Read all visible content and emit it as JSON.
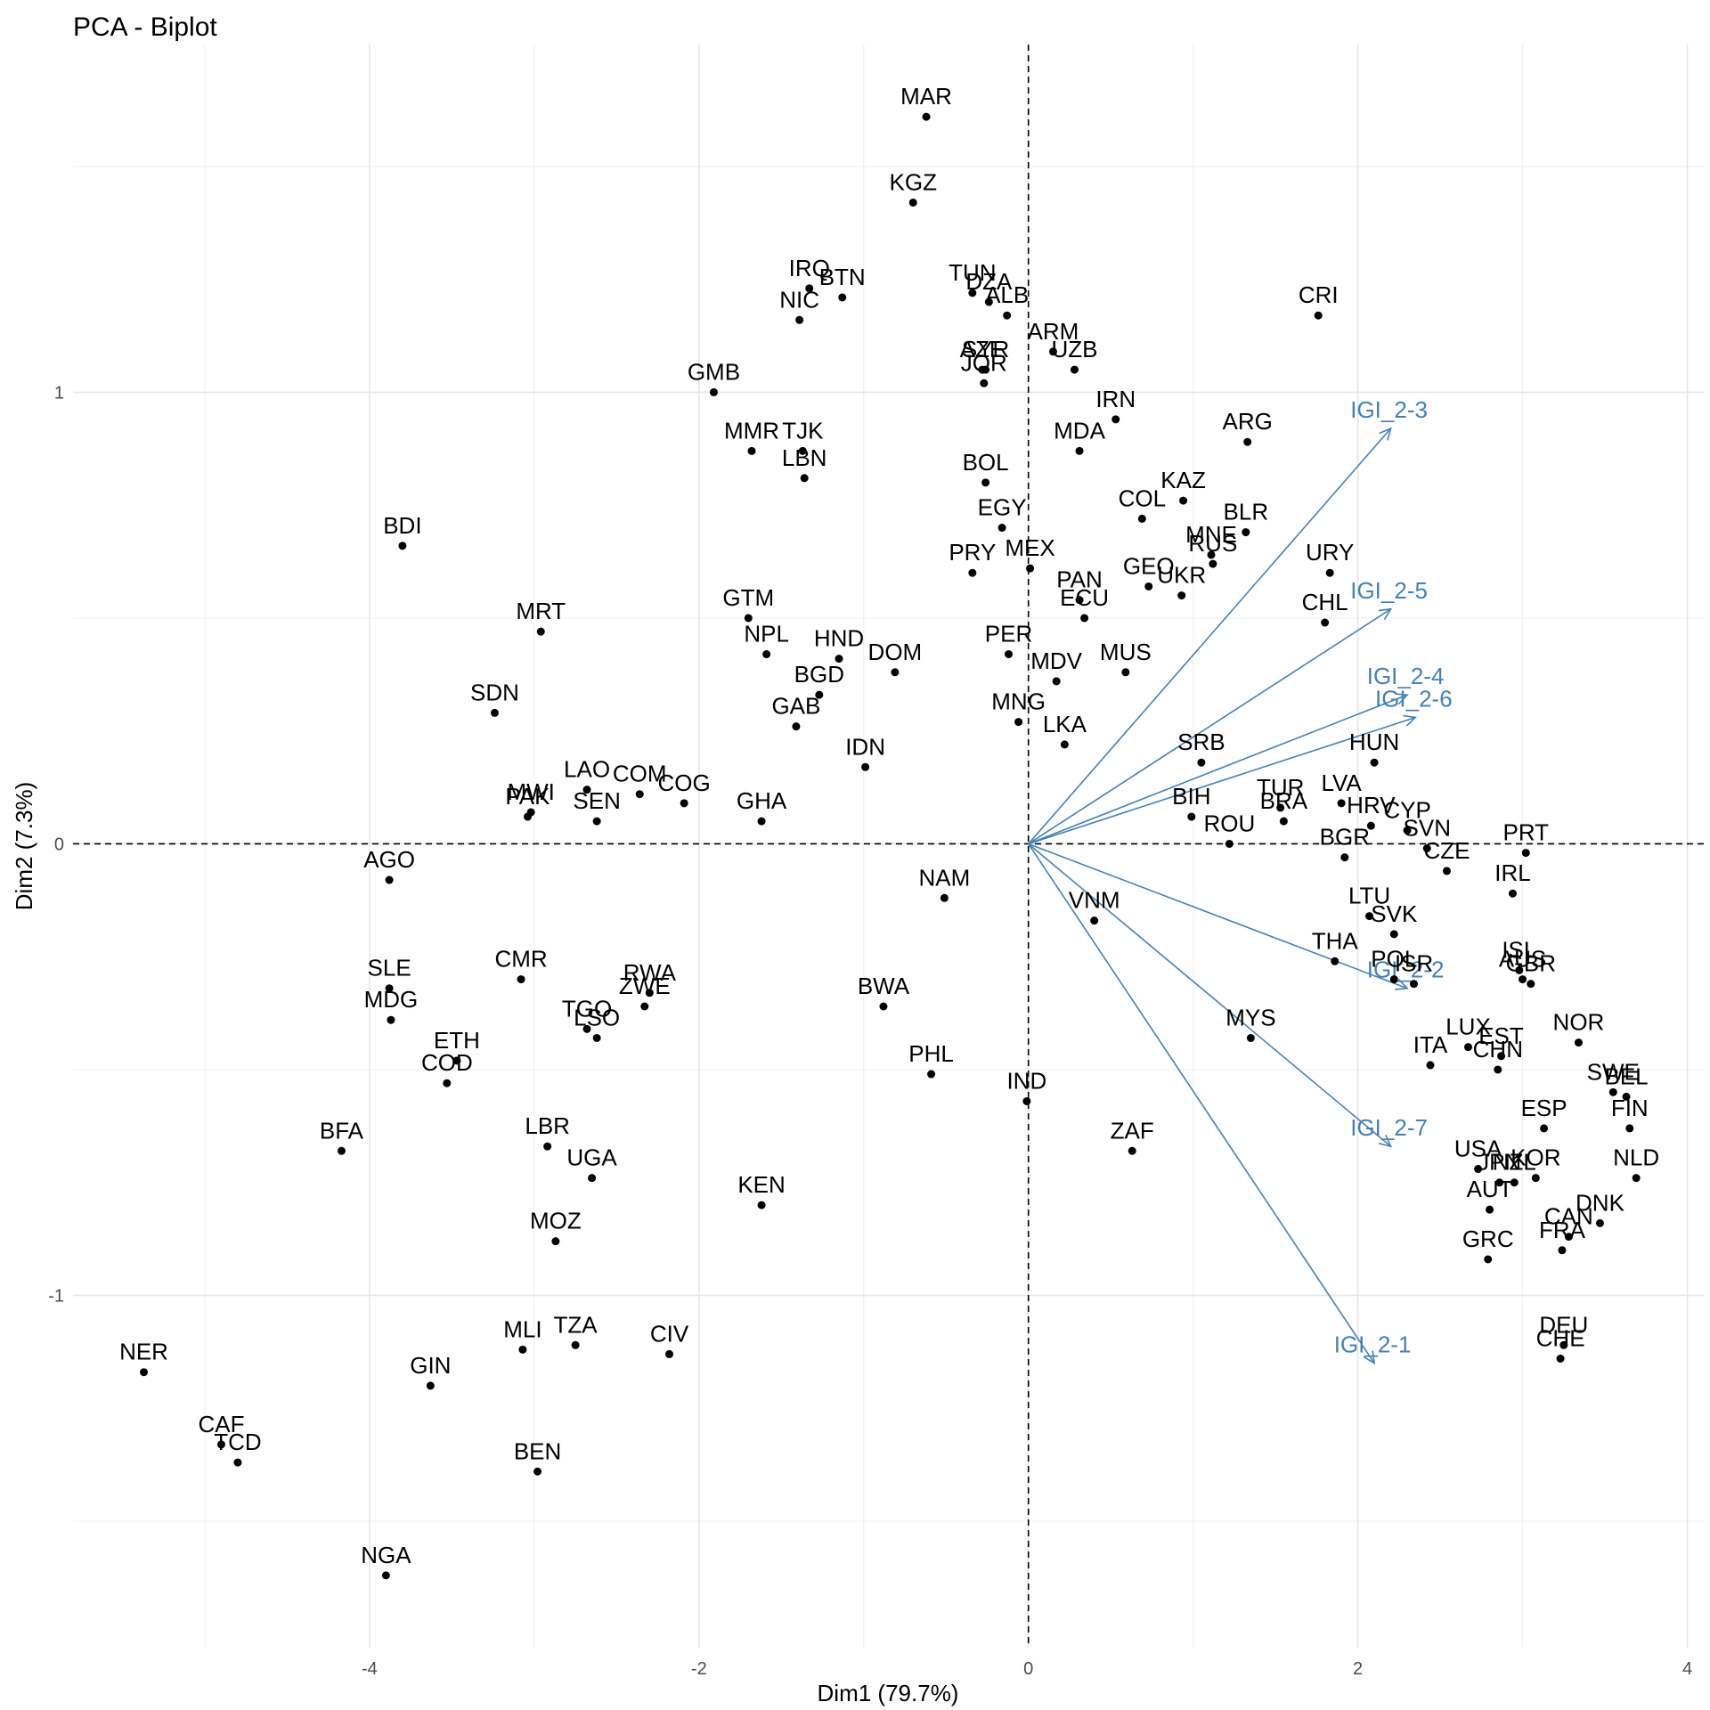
{
  "chart_data": {
    "type": "scatter",
    "title": "PCA - Biplot",
    "xlabel": "Dim1 (79.7%)",
    "ylabel": "Dim2 (7.3%)",
    "xlim": [
      -5.8,
      4.1
    ],
    "ylim": [
      -1.78,
      1.77
    ],
    "xticks": [
      -4,
      -2,
      0,
      2,
      4
    ],
    "xtick_labels": [
      "-4",
      "-2",
      "0",
      "2",
      "4"
    ],
    "yticks": [
      -1,
      0,
      1
    ],
    "ytick_labels": [
      "-1",
      "0",
      "1"
    ],
    "grid": true,
    "reference_lines": "dashed lines at x=0 and y=0",
    "variable_color": "#4682b4",
    "point_color": "#000000",
    "individuals": [
      {
        "label": "MAR",
        "x": -0.62,
        "y": 1.61
      },
      {
        "label": "KGZ",
        "x": -0.7,
        "y": 1.42
      },
      {
        "label": "IRQ",
        "x": -1.33,
        "y": 1.23
      },
      {
        "label": "BTN",
        "x": -1.13,
        "y": 1.21
      },
      {
        "label": "NIC",
        "x": -1.39,
        "y": 1.16
      },
      {
        "label": "TUN",
        "x": -0.34,
        "y": 1.22
      },
      {
        "label": "DZA",
        "x": -0.24,
        "y": 1.2
      },
      {
        "label": "ALB",
        "x": -0.13,
        "y": 1.17
      },
      {
        "label": "CRI",
        "x": 1.76,
        "y": 1.17
      },
      {
        "label": "ARM",
        "x": 0.15,
        "y": 1.09
      },
      {
        "label": "UZB",
        "x": 0.28,
        "y": 1.05
      },
      {
        "label": "AZE",
        "x": -0.28,
        "y": 1.05
      },
      {
        "label": "SYR",
        "x": -0.26,
        "y": 1.05
      },
      {
        "label": "JOR",
        "x": -0.27,
        "y": 1.02
      },
      {
        "label": "GMB",
        "x": -1.91,
        "y": 1.0
      },
      {
        "label": "IRN",
        "x": 0.53,
        "y": 0.94
      },
      {
        "label": "MMR",
        "x": -1.68,
        "y": 0.87
      },
      {
        "label": "TJK",
        "x": -1.37,
        "y": 0.87
      },
      {
        "label": "LBN",
        "x": -1.36,
        "y": 0.81
      },
      {
        "label": "ARG",
        "x": 1.33,
        "y": 0.89
      },
      {
        "label": "MDA",
        "x": 0.31,
        "y": 0.87
      },
      {
        "label": "BOL",
        "x": -0.26,
        "y": 0.8
      },
      {
        "label": "KAZ",
        "x": 0.94,
        "y": 0.76
      },
      {
        "label": "COL",
        "x": 0.69,
        "y": 0.72
      },
      {
        "label": "EGY",
        "x": -0.16,
        "y": 0.7
      },
      {
        "label": "BLR",
        "x": 1.32,
        "y": 0.69
      },
      {
        "label": "MNE",
        "x": 1.11,
        "y": 0.64
      },
      {
        "label": "RUS",
        "x": 1.12,
        "y": 0.62
      },
      {
        "label": "BDI",
        "x": -3.8,
        "y": 0.66
      },
      {
        "label": "MEX",
        "x": 0.01,
        "y": 0.61
      },
      {
        "label": "PRY",
        "x": -0.34,
        "y": 0.6
      },
      {
        "label": "URY",
        "x": 1.83,
        "y": 0.6
      },
      {
        "label": "GEO",
        "x": 0.73,
        "y": 0.57
      },
      {
        "label": "UKR",
        "x": 0.93,
        "y": 0.55
      },
      {
        "label": "PAN",
        "x": 0.31,
        "y": 0.54
      },
      {
        "label": "ECU",
        "x": 0.34,
        "y": 0.5
      },
      {
        "label": "CHL",
        "x": 1.8,
        "y": 0.49
      },
      {
        "label": "GTM",
        "x": -1.7,
        "y": 0.5
      },
      {
        "label": "MRT",
        "x": -2.96,
        "y": 0.47
      },
      {
        "label": "NPL",
        "x": -1.59,
        "y": 0.42
      },
      {
        "label": "HND",
        "x": -1.15,
        "y": 0.41
      },
      {
        "label": "PER",
        "x": -0.12,
        "y": 0.42
      },
      {
        "label": "MUS",
        "x": 0.59,
        "y": 0.38
      },
      {
        "label": "DOM",
        "x": -0.81,
        "y": 0.38
      },
      {
        "label": "BGD",
        "x": -1.27,
        "y": 0.33
      },
      {
        "label": "MDV",
        "x": 0.17,
        "y": 0.36
      },
      {
        "label": "SDN",
        "x": -3.24,
        "y": 0.29
      },
      {
        "label": "GAB",
        "x": -1.41,
        "y": 0.26
      },
      {
        "label": "MNG",
        "x": -0.06,
        "y": 0.27
      },
      {
        "label": "LKA",
        "x": 0.22,
        "y": 0.22
      },
      {
        "label": "SRB",
        "x": 1.05,
        "y": 0.18
      },
      {
        "label": "HUN",
        "x": 2.1,
        "y": 0.18
      },
      {
        "label": "IDN",
        "x": -0.99,
        "y": 0.17
      },
      {
        "label": "LAO",
        "x": -2.68,
        "y": 0.12
      },
      {
        "label": "COM",
        "x": -2.36,
        "y": 0.11
      },
      {
        "label": "COG",
        "x": -2.09,
        "y": 0.09
      },
      {
        "label": "MWI",
        "x": -3.02,
        "y": 0.07
      },
      {
        "label": "PAK",
        "x": -3.04,
        "y": 0.06
      },
      {
        "label": "SEN",
        "x": -2.62,
        "y": 0.05
      },
      {
        "label": "GHA",
        "x": -1.62,
        "y": 0.05
      },
      {
        "label": "BIH",
        "x": 0.99,
        "y": 0.06
      },
      {
        "label": "TUR",
        "x": 1.53,
        "y": 0.08
      },
      {
        "label": "BRA",
        "x": 1.55,
        "y": 0.05
      },
      {
        "label": "LVA",
        "x": 1.9,
        "y": 0.09
      },
      {
        "label": "HRV",
        "x": 2.08,
        "y": 0.04
      },
      {
        "label": "CYP",
        "x": 2.3,
        "y": 0.03
      },
      {
        "label": "SVN",
        "x": 2.42,
        "y": -0.01
      },
      {
        "label": "ROU",
        "x": 1.22,
        "y": 0.0
      },
      {
        "label": "BGR",
        "x": 1.92,
        "y": -0.03
      },
      {
        "label": "CZE",
        "x": 2.54,
        "y": -0.06
      },
      {
        "label": "PRT",
        "x": 3.02,
        "y": -0.02
      },
      {
        "label": "AGO",
        "x": -3.88,
        "y": -0.08
      },
      {
        "label": "NAM",
        "x": -0.51,
        "y": -0.12
      },
      {
        "label": "IRL",
        "x": 2.94,
        "y": -0.11
      },
      {
        "label": "LTU",
        "x": 2.07,
        "y": -0.16
      },
      {
        "label": "VNM",
        "x": 0.4,
        "y": -0.17
      },
      {
        "label": "SVK",
        "x": 2.22,
        "y": -0.2
      },
      {
        "label": "THA",
        "x": 1.86,
        "y": -0.26
      },
      {
        "label": "POL",
        "x": 2.22,
        "y": -0.3
      },
      {
        "label": "ISR",
        "x": 2.34,
        "y": -0.31
      },
      {
        "label": "ISL",
        "x": 2.98,
        "y": -0.28
      },
      {
        "label": "AUS",
        "x": 3.0,
        "y": -0.3
      },
      {
        "label": "GBR",
        "x": 3.05,
        "y": -0.31
      },
      {
        "label": "SLE",
        "x": -3.88,
        "y": -0.32
      },
      {
        "label": "MDG",
        "x": -3.87,
        "y": -0.39
      },
      {
        "label": "CMR",
        "x": -3.08,
        "y": -0.3
      },
      {
        "label": "RWA",
        "x": -2.3,
        "y": -0.33
      },
      {
        "label": "ZWE",
        "x": -2.33,
        "y": -0.36
      },
      {
        "label": "BWA",
        "x": -0.88,
        "y": -0.36
      },
      {
        "label": "TGO",
        "x": -2.68,
        "y": -0.41
      },
      {
        "label": "LSO",
        "x": -2.62,
        "y": -0.43
      },
      {
        "label": "MYS",
        "x": 1.35,
        "y": -0.43
      },
      {
        "label": "NOR",
        "x": 3.34,
        "y": -0.44
      },
      {
        "label": "ETH",
        "x": -3.47,
        "y": -0.48
      },
      {
        "label": "LUX",
        "x": 2.67,
        "y": -0.45
      },
      {
        "label": "EST",
        "x": 2.87,
        "y": -0.47
      },
      {
        "label": "CHN",
        "x": 2.85,
        "y": -0.5
      },
      {
        "label": "ITA",
        "x": 2.44,
        "y": -0.49
      },
      {
        "label": "COD",
        "x": -3.53,
        "y": -0.53
      },
      {
        "label": "PHL",
        "x": -0.59,
        "y": -0.51
      },
      {
        "label": "SWE",
        "x": 3.55,
        "y": -0.55
      },
      {
        "label": "BEL",
        "x": 3.63,
        "y": -0.56
      },
      {
        "label": "IND",
        "x": -0.01,
        "y": -0.57
      },
      {
        "label": "FIN",
        "x": 3.65,
        "y": -0.63
      },
      {
        "label": "ESP",
        "x": 3.13,
        "y": -0.63
      },
      {
        "label": "BFA",
        "x": -4.17,
        "y": -0.68
      },
      {
        "label": "LBR",
        "x": -2.92,
        "y": -0.67
      },
      {
        "label": "ZAF",
        "x": 0.63,
        "y": -0.68
      },
      {
        "label": "UGA",
        "x": -2.65,
        "y": -0.74
      },
      {
        "label": "USA",
        "x": 2.73,
        "y": -0.72
      },
      {
        "label": "KOR",
        "x": 3.08,
        "y": -0.74
      },
      {
        "label": "JPN",
        "x": 2.86,
        "y": -0.75
      },
      {
        "label": "NZL",
        "x": 2.95,
        "y": -0.75
      },
      {
        "label": "NLD",
        "x": 3.69,
        "y": -0.74
      },
      {
        "label": "AUT",
        "x": 2.8,
        "y": -0.81
      },
      {
        "label": "KEN",
        "x": -1.62,
        "y": -0.8
      },
      {
        "label": "MOZ",
        "x": -2.87,
        "y": -0.88
      },
      {
        "label": "DNK",
        "x": 3.47,
        "y": -0.84
      },
      {
        "label": "CAN",
        "x": 3.28,
        "y": -0.87
      },
      {
        "label": "FRA",
        "x": 3.24,
        "y": -0.9
      },
      {
        "label": "GRC",
        "x": 2.79,
        "y": -0.92
      },
      {
        "label": "MLI",
        "x": -3.07,
        "y": -1.12
      },
      {
        "label": "TZA",
        "x": -2.75,
        "y": -1.11
      },
      {
        "label": "CIV",
        "x": -2.18,
        "y": -1.13
      },
      {
        "label": "DEU",
        "x": 3.25,
        "y": -1.11
      },
      {
        "label": "CHE",
        "x": 3.23,
        "y": -1.14
      },
      {
        "label": "NER",
        "x": -5.37,
        "y": -1.17
      },
      {
        "label": "GIN",
        "x": -3.63,
        "y": -1.2
      },
      {
        "label": "CAF",
        "x": -4.9,
        "y": -1.33
      },
      {
        "label": "TCD",
        "x": -4.8,
        "y": -1.37
      },
      {
        "label": "BEN",
        "x": -2.98,
        "y": -1.39
      },
      {
        "label": "NGA",
        "x": -3.9,
        "y": -1.62
      }
    ],
    "variables": [
      {
        "label": "IGI_2-3",
        "x": 2.2,
        "y": 0.92
      },
      {
        "label": "IGI_2-5",
        "x": 2.2,
        "y": 0.52
      },
      {
        "label": "IGI_2-4",
        "x": 2.3,
        "y": 0.33
      },
      {
        "label": "IGI_2-6",
        "x": 2.35,
        "y": 0.28
      },
      {
        "label": "IGI_2-2",
        "x": 2.3,
        "y": -0.32
      },
      {
        "label": "IGI_2-7",
        "x": 2.2,
        "y": -0.67
      },
      {
        "label": "IGI_2-1",
        "x": 2.1,
        "y": -1.15
      }
    ]
  }
}
